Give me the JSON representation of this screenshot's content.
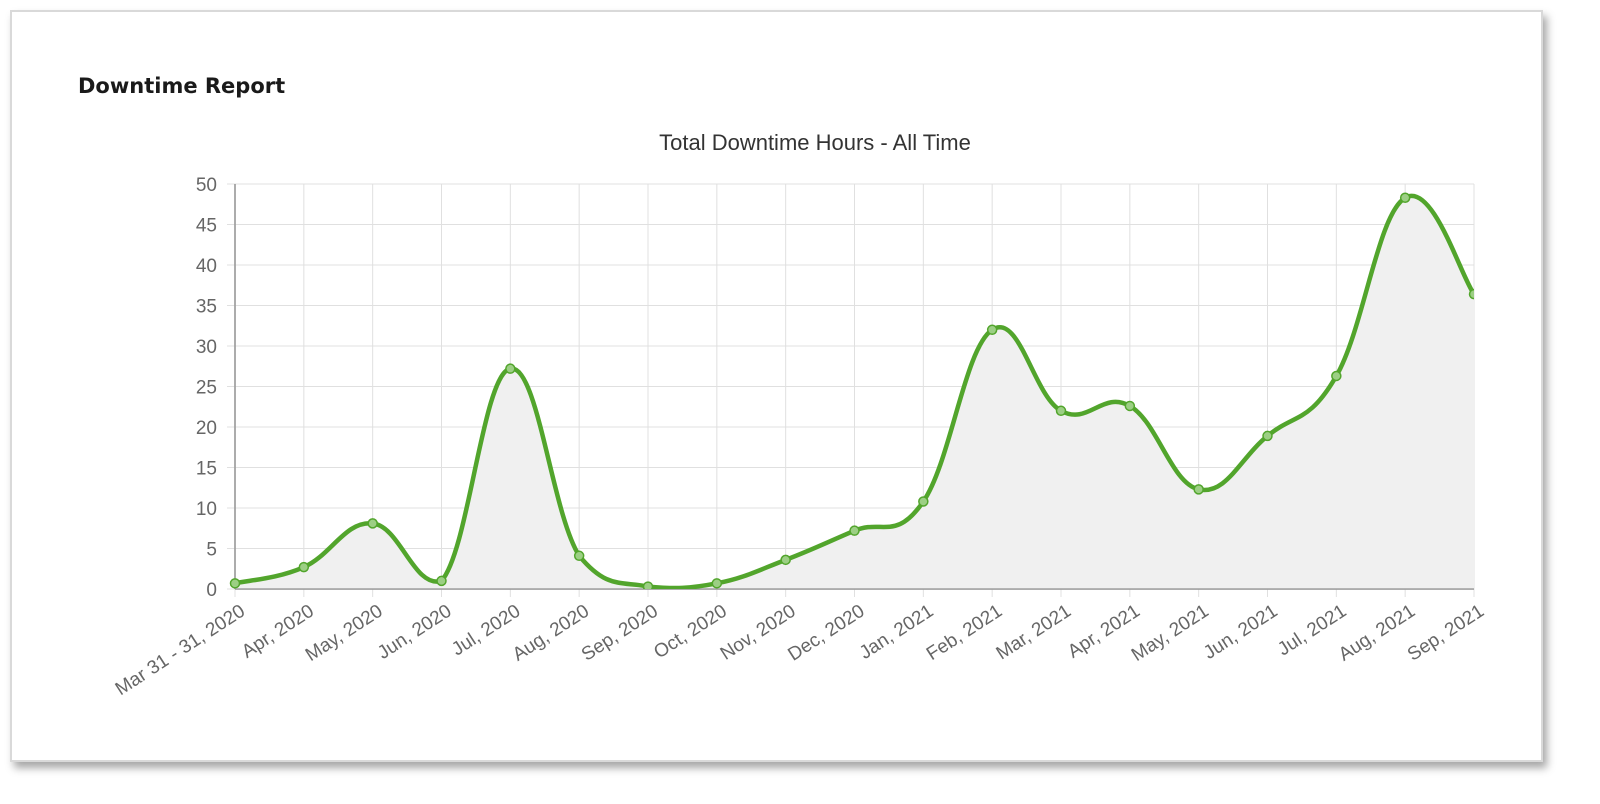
{
  "card": {
    "title": "Downtime Report"
  },
  "chart_data": {
    "type": "line",
    "title": "Total Downtime Hours - All Time",
    "xlabel": "",
    "ylabel": "",
    "categories": [
      "Mar 31 - 31, 2020",
      "Apr, 2020",
      "May, 2020",
      "Jun, 2020",
      "Jul, 2020",
      "Aug, 2020",
      "Sep, 2020",
      "Oct, 2020",
      "Nov, 2020",
      "Dec, 2020",
      "Jan, 2021",
      "Feb, 2021",
      "Mar, 2021",
      "Apr, 2021",
      "May, 2021",
      "Jun, 2021",
      "Jul, 2021",
      "Aug, 2021",
      "Sep, 2021"
    ],
    "series": [
      {
        "name": "Total Downtime Hours",
        "values": [
          0.7,
          2.7,
          8.1,
          1.0,
          27.2,
          4.1,
          0.3,
          0.7,
          3.6,
          7.2,
          10.8,
          32.0,
          22.0,
          22.6,
          12.3,
          18.9,
          26.3,
          48.3,
          36.4
        ],
        "color": "#52a52c",
        "fill": "#f0f0f0"
      }
    ],
    "ylim": [
      0,
      50
    ],
    "yticks": [
      0,
      5,
      10,
      15,
      20,
      25,
      30,
      35,
      40,
      45,
      50
    ],
    "grid": true,
    "legend": "none",
    "curve": "smooth"
  },
  "colors": {
    "line": "#52a52c",
    "point_fill": "#9ccf84",
    "area_fill": "#f0f0f0",
    "grid": "#e0e0e0",
    "axis": "#a0a0a0",
    "tick_text": "#666666"
  }
}
